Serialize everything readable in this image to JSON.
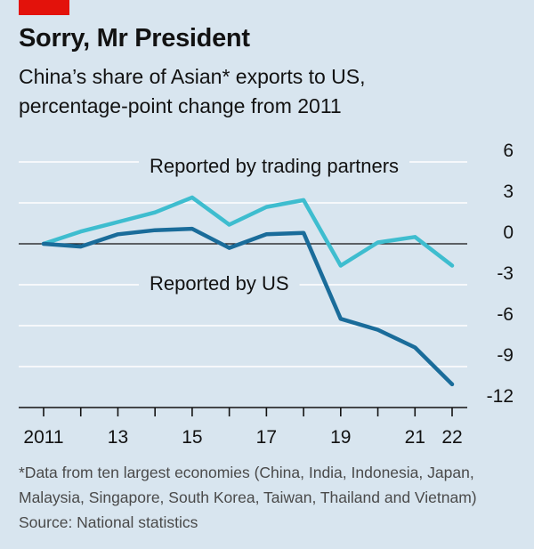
{
  "header": {
    "title": "Sorry, Mr President",
    "subtitle_line1": "China’s share of Asian* exports to US,",
    "subtitle_line2": "percentage-point change from 2011"
  },
  "footer": {
    "note_line1": "*Data from ten largest economies (China, India, Indonesia, Japan,",
    "note_line2": "Malaysia, Singapore, South Korea, Taiwan, Thailand and Vietnam)",
    "source": "Source: National statistics"
  },
  "colors": {
    "background": "#d8e5ef",
    "brand_red": "#e3120b",
    "series_partners": "#3ebdcf",
    "series_us": "#1a6c9a",
    "grid": "#ffffff",
    "axis": "#121212"
  },
  "chart_data": {
    "type": "line",
    "title": "Sorry, Mr President",
    "subtitle": "China’s share of Asian* exports to US, percentage-point change from 2011",
    "xlabel": "",
    "ylabel": "",
    "x": [
      2011,
      2012,
      2013,
      2014,
      2015,
      2016,
      2017,
      2018,
      2019,
      2020,
      2021,
      2022
    ],
    "xlim": [
      2011,
      2023
    ],
    "ylim": [
      -12,
      6
    ],
    "x_ticks": [
      2011,
      2012,
      2013,
      2014,
      2015,
      2016,
      2017,
      2018,
      2019,
      2020,
      2021,
      2022
    ],
    "x_tick_labels": [
      "2011",
      "",
      "13",
      "",
      "15",
      "",
      "17",
      "",
      "19",
      "",
      "21",
      "22"
    ],
    "y_ticks": [
      6,
      3,
      0,
      -3,
      -6,
      -9,
      -12
    ],
    "y_tick_labels": [
      "6",
      "3",
      "0",
      "-3",
      "-6",
      "-9",
      "-12"
    ],
    "y_axis_side": "right",
    "grid": true,
    "series": [
      {
        "name": "Reported by trading partners",
        "color": "#3ebdcf",
        "values": [
          0,
          0.9,
          1.6,
          2.3,
          3.4,
          1.4,
          2.7,
          3.2,
          -1.6,
          0.1,
          0.5,
          -1.6
        ]
      },
      {
        "name": "Reported by US",
        "color": "#1a6c9a",
        "values": [
          0,
          -0.2,
          0.7,
          1.0,
          1.1,
          -0.3,
          0.7,
          0.8,
          -5.5,
          -6.3,
          -7.6,
          -10.3
        ]
      }
    ]
  }
}
